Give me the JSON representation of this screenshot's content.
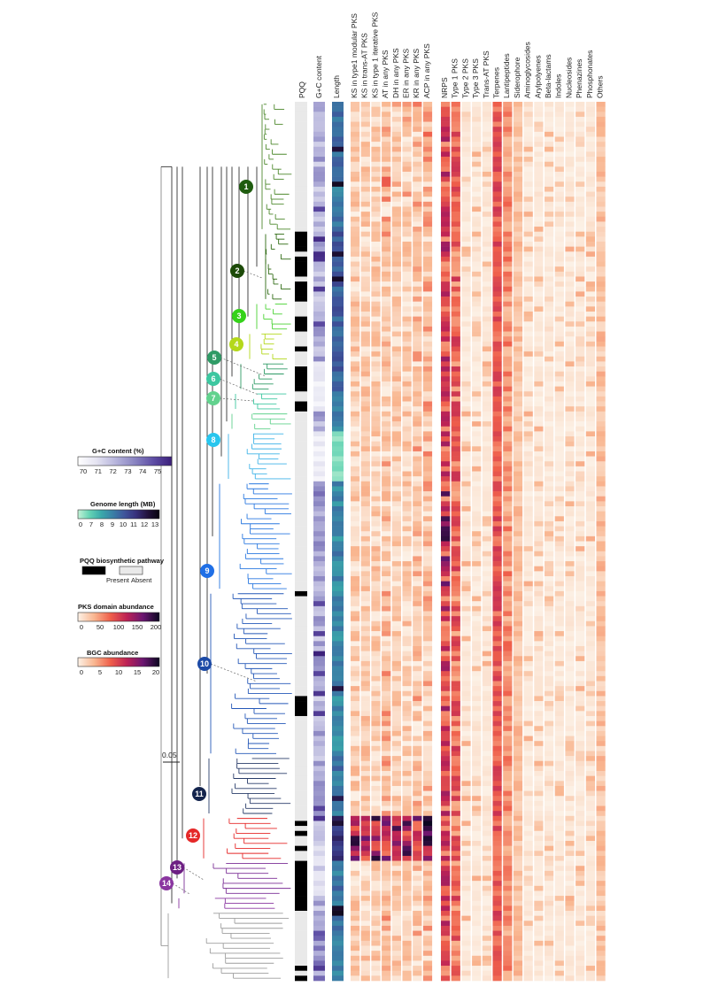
{
  "headers": {
    "pqq": "PQQ",
    "gc": "G+C content",
    "length": "Length"
  },
  "pks_columns": [
    "KS in type1 modular PKS",
    "KS in trans-AT PKS",
    "KS in type 1 iterative PKS",
    "AT in any PKS",
    "DH in any PKS",
    "ER in any PKS",
    "KR in any PKS",
    "ACP in any PKS"
  ],
  "bgc_columns": [
    "NRPS",
    "Type 1 PKS",
    "Type 2 PKS",
    "Type 3 PKS",
    "Trans-AT PKS",
    "Terpenes",
    "Lantipeptides",
    "Siderophore",
    "Aminoglycosides",
    "Arylpolyenes",
    "Beta-lactams",
    "Indoles",
    "Nucleosides",
    "Phenazines",
    "Phosphonates",
    "Others"
  ],
  "scale_label": "0.05",
  "legends": {
    "gc": {
      "title": "G+C content (%)",
      "ticks": [
        "70",
        "71",
        "72",
        "73",
        "74",
        "75"
      ],
      "colors": [
        "#ffffff",
        "#e4e3f1",
        "#b7b5dc",
        "#8b86c2",
        "#5f4fa6",
        "#3b1f7a"
      ]
    },
    "genome": {
      "title": "Genome length (MB)",
      "ticks": [
        "0",
        "7",
        "8",
        "9",
        "10",
        "11",
        "12",
        "13"
      ],
      "colors": [
        "#c3f2d6",
        "#64d3b4",
        "#3aa9aa",
        "#3a7fa6",
        "#3e549b",
        "#37307c",
        "#22123c",
        "#07040e"
      ]
    },
    "pqq": {
      "title": "PQQ biosynthetic pathway",
      "present": "Present",
      "absent": "Absent",
      "present_color": "#000000",
      "absent_color": "#e9e9e9"
    },
    "pks": {
      "title": "PKS domain abundance",
      "ticks": [
        "0",
        "50",
        "100",
        "150",
        "200"
      ],
      "colors": [
        "#fcf1e6",
        "#f9b690",
        "#ef5f4b",
        "#bd2255",
        "#6a1671",
        "#0b0720"
      ]
    },
    "bgc": {
      "title": "BGC abundance",
      "ticks": [
        "0",
        "5",
        "10",
        "15",
        "20"
      ],
      "colors": [
        "#fcf1e6",
        "#f9b690",
        "#ef5f4b",
        "#bd2255",
        "#6a1671",
        "#0b0720"
      ]
    }
  },
  "clades": [
    {
      "id": "1",
      "color": "#1f5c0f"
    },
    {
      "id": "2",
      "color": "#1c4a08"
    },
    {
      "id": "3",
      "color": "#35d21a"
    },
    {
      "id": "4",
      "color": "#b4d81b"
    },
    {
      "id": "5",
      "color": "#2f9b66"
    },
    {
      "id": "6",
      "color": "#3dc7a0"
    },
    {
      "id": "7",
      "color": "#62d28e"
    },
    {
      "id": "8",
      "color": "#28c6ee"
    },
    {
      "id": "9",
      "color": "#1f6fe6"
    },
    {
      "id": "10",
      "color": "#1c4aa6"
    },
    {
      "id": "11",
      "color": "#13244d"
    },
    {
      "id": "12",
      "color": "#e52828"
    },
    {
      "id": "13",
      "color": "#6d1f83"
    },
    {
      "id": "14",
      "color": "#8a36a0"
    }
  ]
}
